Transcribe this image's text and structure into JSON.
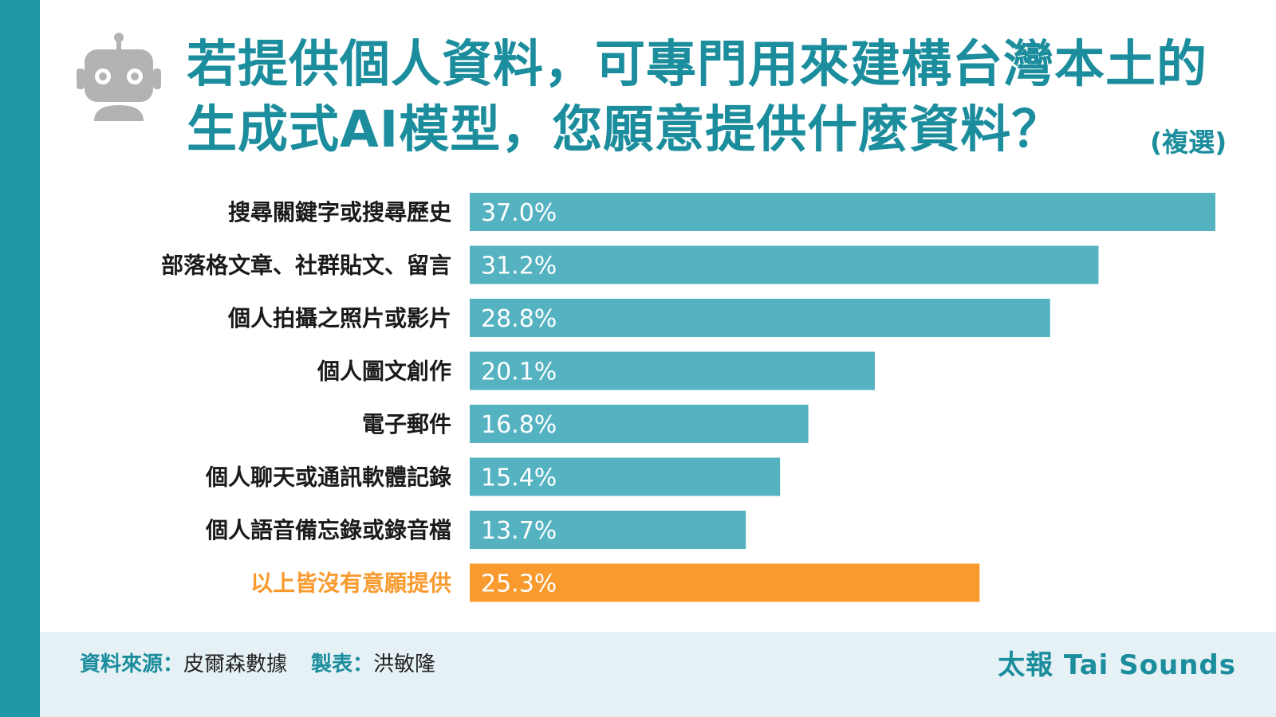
{
  "header": {
    "title_line1": "若提供個人資料，可專門用來建構台灣本土的",
    "title_line2": "生成式AI模型，您願意提供什麼資料？",
    "multi_select_note": "(複選)",
    "robot_icon": "robot-icon"
  },
  "colors": {
    "accent": "#1b8d9d",
    "bar": "#55b2c1",
    "highlight": "#f99a2e",
    "footer_bg": "#e6f1f6"
  },
  "chart_data": {
    "type": "bar",
    "orientation": "horizontal",
    "categories": [
      "搜尋關鍵字或搜尋歷史",
      "部落格文章、社群貼文、留言",
      "個人拍攝之照片或影片",
      "個人圖文創作",
      "電子郵件",
      "個人聊天或通訊軟體記錄",
      "個人語音備忘錄或錄音檔",
      "以上皆沒有意願提供"
    ],
    "values": [
      37.0,
      31.2,
      28.8,
      20.1,
      16.8,
      15.4,
      13.7,
      25.3
    ],
    "value_labels": [
      "37.0%",
      "31.2%",
      "28.8%",
      "20.1%",
      "16.8%",
      "15.4%",
      "13.7%",
      "25.3%"
    ],
    "highlight_index": 7,
    "xlim": [
      0,
      37.0
    ],
    "unit": "%",
    "grid": false,
    "legend": "none"
  },
  "footer": {
    "source_key": "資料來源：",
    "source_value": "皮爾森數據",
    "maker_key": "製表：",
    "maker_value": "洪敏隆",
    "brand": "太報 Tai Sounds"
  }
}
